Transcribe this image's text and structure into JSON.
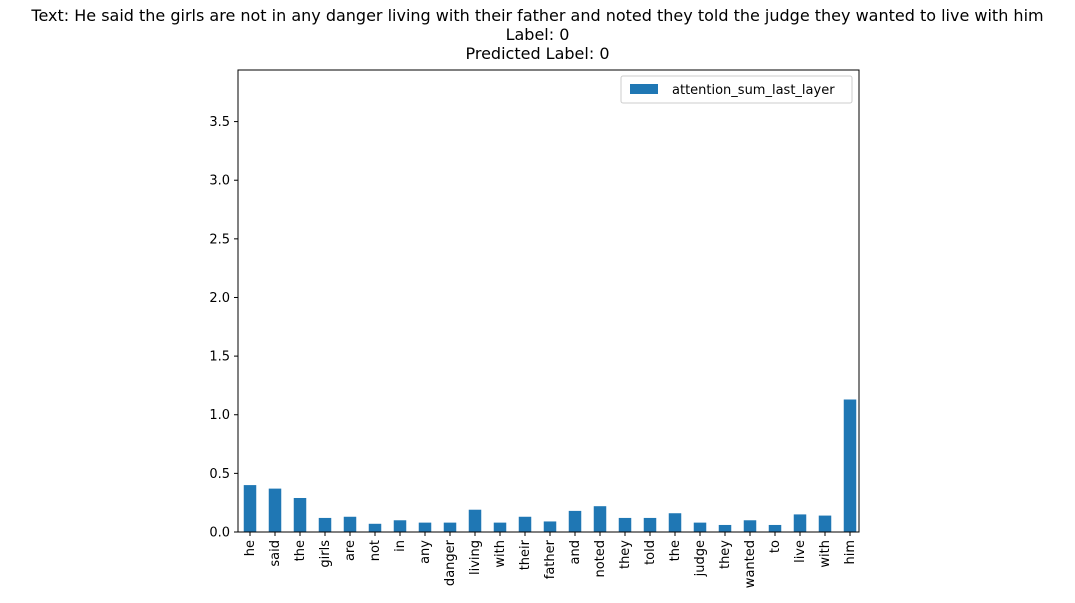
{
  "title": {
    "text_line": "Text: He said the girls are not in any danger living with their father and noted they told the judge they wanted to live with him",
    "label_line": "Label: 0",
    "predicted_line": "Predicted Label: 0"
  },
  "chart_data": {
    "type": "bar",
    "categories": [
      "he",
      "said",
      "the",
      "girls",
      "are",
      "not",
      "in",
      "any",
      "danger",
      "living",
      "with",
      "their",
      "father",
      "and",
      "noted",
      "they",
      "told",
      "the",
      "judge",
      "they",
      "wanted",
      "to",
      "live",
      "with",
      "him"
    ],
    "series": [
      {
        "name": "attention_sum_last_layer",
        "values": [
          0.4,
          0.37,
          0.29,
          0.12,
          0.13,
          0.07,
          0.1,
          0.08,
          0.08,
          0.19,
          0.08,
          0.13,
          0.09,
          0.18,
          0.22,
          0.12,
          0.12,
          0.16,
          0.08,
          0.06,
          0.1,
          0.06,
          0.15,
          0.14,
          1.13
        ],
        "color": "#1f77b4"
      }
    ],
    "yticks": [
      "0.0",
      "0.5",
      "1.0",
      "1.5",
      "2.0",
      "2.5",
      "3.0",
      "3.5"
    ],
    "ylim": [
      0,
      3.94
    ],
    "legend_position": "top-right",
    "grid": false
  }
}
